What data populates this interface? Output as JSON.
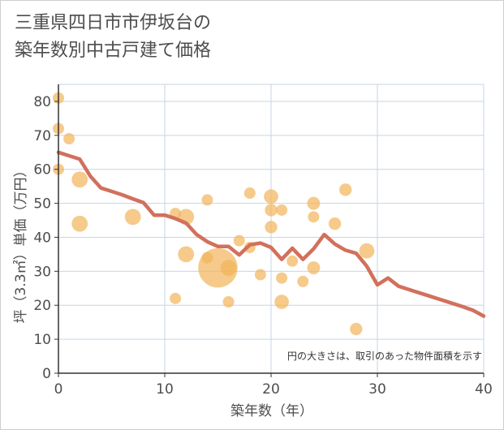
{
  "title_line1": "三重県四日市市伊坂台の",
  "title_line2": "築年数別中古戸建て価格",
  "chart_data": {
    "type": "scatter",
    "title": "三重県四日市市伊坂台の築年数別中古戸建て価格",
    "xlabel": "築年数（年）",
    "ylabel": "坪（3.3㎡）単価（万円）",
    "xlim": [
      0,
      40
    ],
    "ylim": [
      0,
      85
    ],
    "xticks": [
      0,
      10,
      20,
      30,
      40
    ],
    "yticks": [
      0,
      10,
      20,
      30,
      40,
      50,
      60,
      70,
      80
    ],
    "grid": true,
    "note": "円の大きさは、取引のあった物件面積を示す",
    "colors": {
      "point": "#f2b35a",
      "line": "#d2705c",
      "grid": "#c5d6e6",
      "axis": "#333333",
      "text": "#4d4d4d"
    },
    "points": [
      {
        "x": 0,
        "y": 81,
        "size": 1
      },
      {
        "x": 0,
        "y": 72,
        "size": 1
      },
      {
        "x": 0,
        "y": 60,
        "size": 1
      },
      {
        "x": 1,
        "y": 69,
        "size": 1
      },
      {
        "x": 2,
        "y": 57,
        "size": 2
      },
      {
        "x": 2,
        "y": 44,
        "size": 2
      },
      {
        "x": 7,
        "y": 46,
        "size": 2
      },
      {
        "x": 11,
        "y": 47,
        "size": 1
      },
      {
        "x": 11,
        "y": 22,
        "size": 1
      },
      {
        "x": 12,
        "y": 46,
        "size": 2
      },
      {
        "x": 12,
        "y": 35,
        "size": 2
      },
      {
        "x": 14,
        "y": 51,
        "size": 1
      },
      {
        "x": 14,
        "y": 34,
        "size": 1
      },
      {
        "x": 15,
        "y": 31,
        "size": 12
      },
      {
        "x": 16,
        "y": 31,
        "size": 2
      },
      {
        "x": 16,
        "y": 21,
        "size": 1
      },
      {
        "x": 17,
        "y": 39,
        "size": 1
      },
      {
        "x": 18,
        "y": 53,
        "size": 1
      },
      {
        "x": 18,
        "y": 37,
        "size": 1
      },
      {
        "x": 19,
        "y": 29,
        "size": 1
      },
      {
        "x": 20,
        "y": 52,
        "size": 1.6
      },
      {
        "x": 20,
        "y": 48,
        "size": 1.2
      },
      {
        "x": 20,
        "y": 43,
        "size": 1.2
      },
      {
        "x": 21,
        "y": 48,
        "size": 1
      },
      {
        "x": 21,
        "y": 28,
        "size": 1
      },
      {
        "x": 21,
        "y": 21,
        "size": 1.6
      },
      {
        "x": 22,
        "y": 33,
        "size": 1
      },
      {
        "x": 23,
        "y": 27,
        "size": 1
      },
      {
        "x": 24,
        "y": 50,
        "size": 1.3
      },
      {
        "x": 24,
        "y": 46,
        "size": 1
      },
      {
        "x": 24,
        "y": 31,
        "size": 1.3
      },
      {
        "x": 26,
        "y": 44,
        "size": 1.2
      },
      {
        "x": 27,
        "y": 54,
        "size": 1.2
      },
      {
        "x": 28,
        "y": 13,
        "size": 1.2
      },
      {
        "x": 29,
        "y": 36,
        "size": 1.8
      }
    ],
    "series": [
      {
        "name": "trend",
        "x": [
          0,
          1,
          2,
          3,
          4,
          5,
          6,
          7,
          8,
          9,
          10,
          11,
          12,
          13,
          14,
          15,
          16,
          17,
          18,
          19,
          20,
          21,
          22,
          23,
          24,
          25,
          26,
          27,
          28,
          29,
          30,
          31,
          32,
          33,
          34,
          35,
          36,
          37,
          38,
          39,
          40
        ],
        "y": [
          65,
          64,
          63,
          58,
          54.5,
          53.5,
          52.5,
          51.3,
          50.2,
          46.5,
          46.5,
          45.5,
          44.2,
          40.8,
          38.7,
          37.3,
          37.3,
          34.8,
          37.8,
          38.3,
          37,
          33.5,
          36.8,
          33.5,
          36.6,
          40.8,
          38,
          36.2,
          35.3,
          31.5,
          26,
          28,
          25.6,
          24.6,
          23.6,
          22.6,
          21.6,
          20.6,
          19.6,
          18.5,
          16.8
        ]
      }
    ]
  }
}
